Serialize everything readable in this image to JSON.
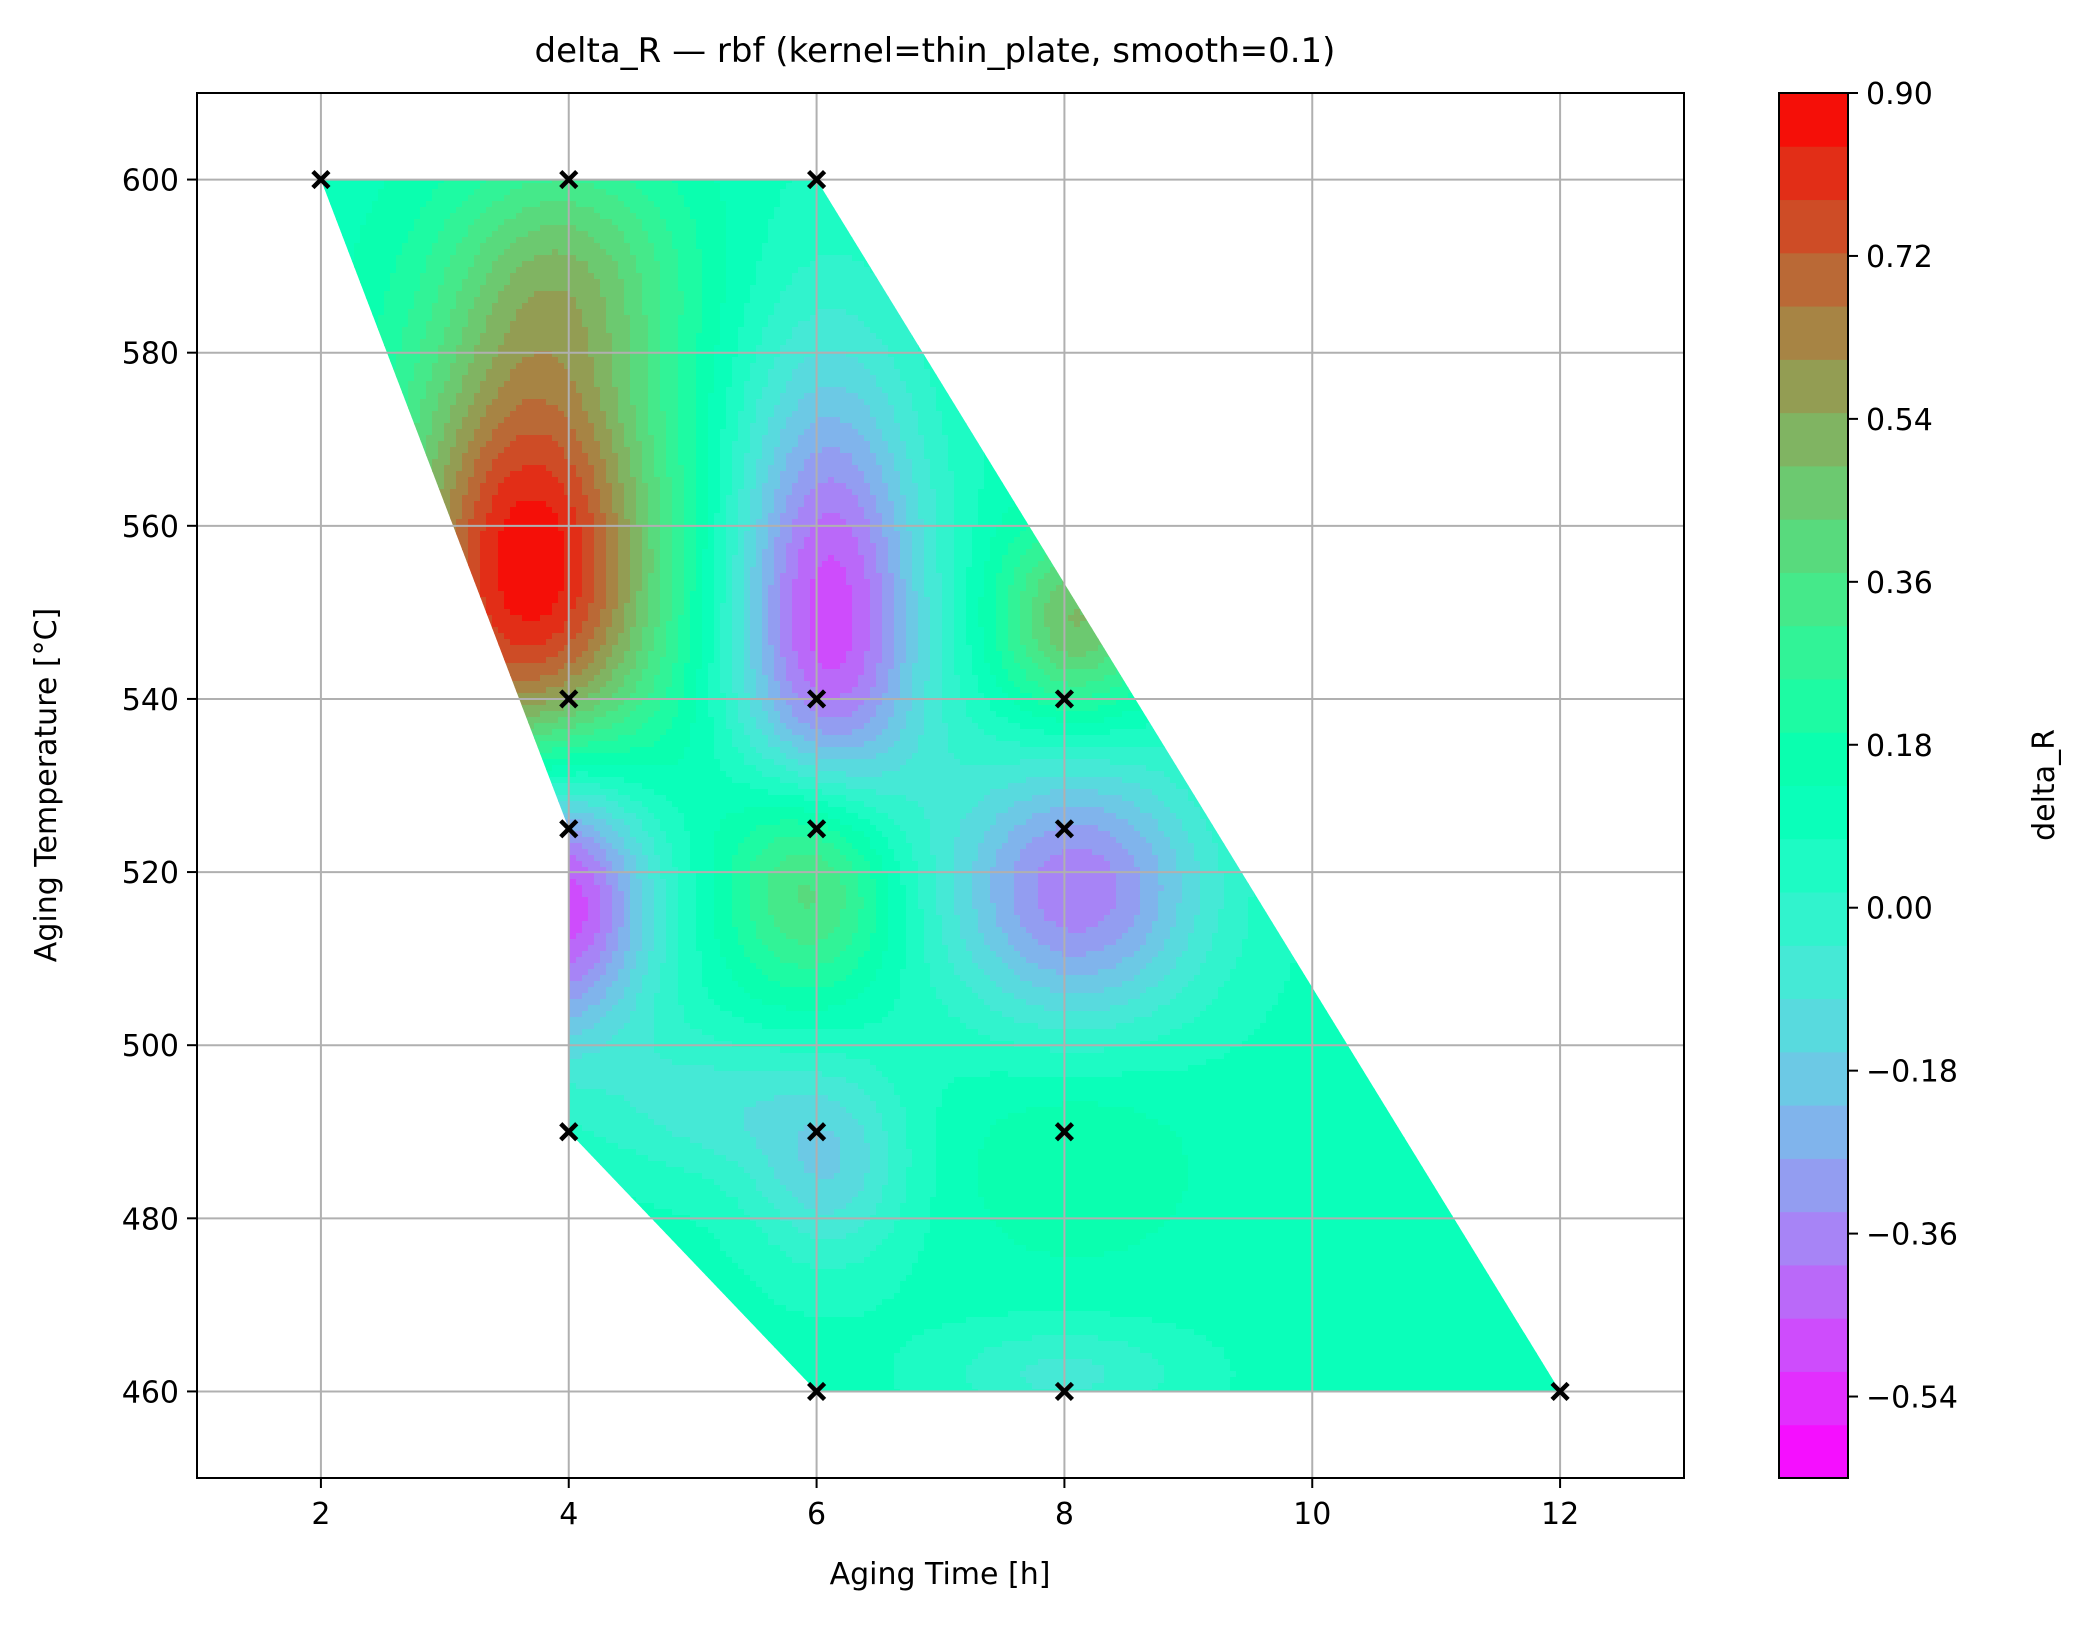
{
  "chart_data": {
    "type": "heatmap",
    "title": "delta_R — rbf (kernel=thin_plate, smooth=0.1)",
    "xlabel": "Aging Time [h]",
    "ylabel": "Aging Temperature [°C]",
    "xlim": [
      1,
      13
    ],
    "ylim": [
      450,
      610
    ],
    "x_ticks": [
      "2",
      "4",
      "6",
      "8",
      "10",
      "12"
    ],
    "x_tick_values": [
      2,
      4,
      6,
      8,
      10,
      12
    ],
    "y_ticks": [
      "460",
      "480",
      "500",
      "520",
      "540",
      "560",
      "580",
      "600"
    ],
    "y_tick_values": [
      460,
      480,
      500,
      520,
      540,
      560,
      580,
      600
    ],
    "grid": true,
    "colormap": "rainbow",
    "colorbar": {
      "label": "delta_R",
      "min": -0.63,
      "max": 0.9,
      "ticks": [
        "−0.54",
        "−0.36",
        "−0.18",
        "0.00",
        "0.18",
        "0.36",
        "0.54",
        "0.72",
        "0.90"
      ],
      "tick_values": [
        -0.54,
        -0.36,
        -0.18,
        0.0,
        0.18,
        0.36,
        0.54,
        0.72,
        0.9
      ],
      "levels": 26
    },
    "domain_polygon": [
      [
        2,
        600
      ],
      [
        6,
        600
      ],
      [
        12,
        460
      ],
      [
        6,
        460
      ],
      [
        4,
        490
      ],
      [
        4,
        525
      ],
      [
        2,
        600
      ]
    ],
    "samples": [
      {
        "x": 2,
        "y": 600
      },
      {
        "x": 4,
        "y": 600
      },
      {
        "x": 6,
        "y": 600
      },
      {
        "x": 4,
        "y": 540
      },
      {
        "x": 6,
        "y": 540
      },
      {
        "x": 8,
        "y": 540
      },
      {
        "x": 4,
        "y": 525
      },
      {
        "x": 6,
        "y": 525
      },
      {
        "x": 8,
        "y": 525
      },
      {
        "x": 4,
        "y": 490
      },
      {
        "x": 6,
        "y": 490
      },
      {
        "x": 8,
        "y": 490
      },
      {
        "x": 6,
        "y": 460
      },
      {
        "x": 8,
        "y": 460
      },
      {
        "x": 12,
        "y": 460
      }
    ],
    "field_features": [
      {
        "x": 3.7,
        "y": 555,
        "value": 0.9,
        "sx": 0.75,
        "sy": 20
      },
      {
        "x": 3.9,
        "y": 518,
        "value": -0.63,
        "sx": 0.55,
        "sy": 12
      },
      {
        "x": 6.1,
        "y": 548,
        "value": -0.5,
        "sx": 0.55,
        "sy": 22
      },
      {
        "x": 6.0,
        "y": 520,
        "value": 0.62,
        "sx": 0.5,
        "sy": 10
      },
      {
        "x": 8.1,
        "y": 518,
        "value": -0.38,
        "sx": 0.75,
        "sy": 11
      },
      {
        "x": 8.1,
        "y": 549,
        "value": 0.5,
        "sx": 0.45,
        "sy": 8
      },
      {
        "x": 4.0,
        "y": 590,
        "value": 0.35,
        "sx": 0.7,
        "sy": 10
      },
      {
        "x": 6.1,
        "y": 486,
        "value": -0.14,
        "sx": 0.45,
        "sy": 8
      },
      {
        "x": 8.1,
        "y": 487,
        "value": 0.2,
        "sx": 0.65,
        "sy": 8
      },
      {
        "x": 8.0,
        "y": 462,
        "value": -0.06,
        "sx": 0.7,
        "sy": 4
      },
      {
        "x": 5.1,
        "y": 493,
        "value": -0.06,
        "sx": 0.6,
        "sy": 6
      },
      {
        "x": 10.5,
        "y": 480,
        "value": 0.1,
        "sx": 1.0,
        "sy": 10
      }
    ],
    "background_value": 0.1
  }
}
